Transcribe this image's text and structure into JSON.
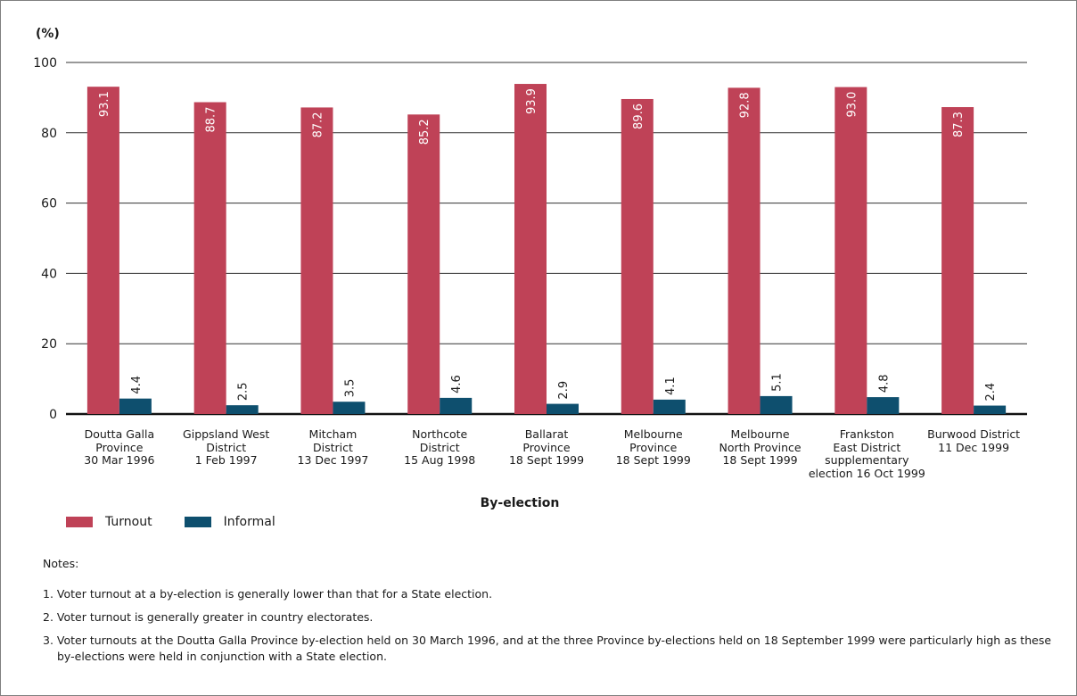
{
  "chart_data": {
    "type": "bar",
    "y_unit_label": "(%)",
    "xlabel": "By-election",
    "ylim": [
      0,
      100
    ],
    "yticks": [
      0,
      20,
      40,
      60,
      80,
      100
    ],
    "grid": true,
    "legend_position": "bottom-left",
    "categories": [
      "Doutta Galla\nProvince\n30 Mar 1996",
      "Gippsland West\nDistrict\n1 Feb 1997",
      "Mitcham\nDistrict\n13 Dec 1997",
      "Northcote\nDistrict\n15 Aug 1998",
      "Ballarat\nProvince\n18 Sept 1999",
      "Melbourne\nProvince\n18 Sept 1999",
      "Melbourne\nNorth Province\n18 Sept 1999",
      "Frankston\nEast District\nsupplementary\nelection 16 Oct 1999",
      "Burwood District\n11 Dec 1999"
    ],
    "series": [
      {
        "name": "Turnout",
        "color": "#bf4257",
        "values": [
          93.1,
          88.7,
          87.2,
          85.2,
          93.9,
          89.6,
          92.8,
          93.0,
          87.3
        ],
        "labels": [
          "93.1",
          "88.7",
          "87.2",
          "85.2",
          "93.9",
          "89.6",
          "92.8",
          "93.0",
          "87.3"
        ]
      },
      {
        "name": "Informal",
        "color": "#0e4f6e",
        "values": [
          4.4,
          2.5,
          3.5,
          4.6,
          2.9,
          4.1,
          5.1,
          4.8,
          2.4
        ],
        "labels": [
          "4.4",
          "2.5",
          "3.5",
          "4.6",
          "2.9",
          "4.1",
          "5.1",
          "4.8",
          "2.4"
        ]
      }
    ]
  },
  "notes": {
    "title": "Notes:",
    "items": [
      "1. Voter turnout at a by-election is generally lower than that for a State election.",
      "2. Voter turnout is generally greater in country electorates.",
      "3. Voter turnouts at the Doutta Galla Province by-election held on 30 March 1996, and at the three Province by-elections held on 18 September 1999 were particularly high as these by-elections were held in conjunction with a State election."
    ]
  }
}
